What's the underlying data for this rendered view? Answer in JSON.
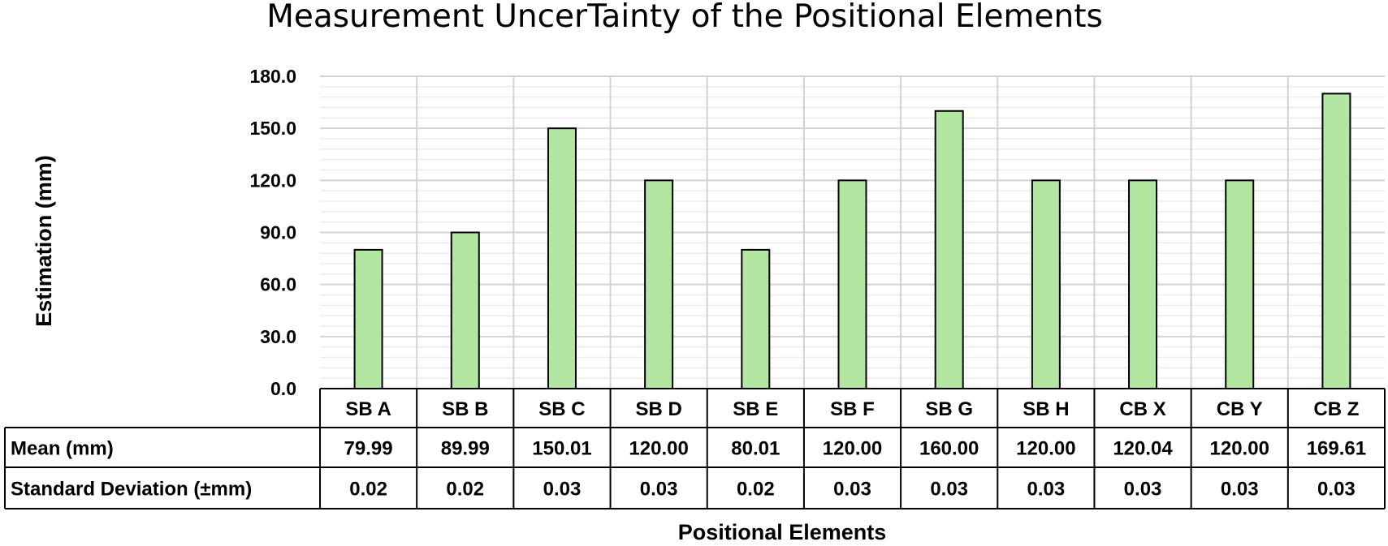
{
  "chart_data": {
    "type": "bar",
    "title": "Measurement UncerTainty of the Positional Elements",
    "xlabel": "Positional Elements",
    "ylabel": "Estimation (mm)",
    "ylim": [
      0,
      180
    ],
    "yticks": [
      "0.0",
      "30.0",
      "60.0",
      "90.0",
      "120.0",
      "150.0",
      "180.0"
    ],
    "grid": true,
    "bar_color": "#b3e6a1",
    "categories": [
      "SB A",
      "SB B",
      "SB C",
      "SB D",
      "SB E",
      "SB F",
      "SB G",
      "SB H",
      "CB X",
      "CB Y",
      "CB Z"
    ],
    "values": [
      80,
      90,
      150,
      120,
      80,
      120,
      160,
      120,
      120,
      120,
      170
    ],
    "table": {
      "rows": [
        {
          "label": "Mean (mm)",
          "values": [
            "79.99",
            "89.99",
            "150.01",
            "120.00",
            "80.01",
            "120.00",
            "160.00",
            "120.00",
            "120.04",
            "120.00",
            "169.61"
          ]
        },
        {
          "label": "Standard Deviation (±mm)",
          "values": [
            "0.02",
            "0.02",
            "0.03",
            "0.03",
            "0.02",
            "0.03",
            "0.03",
            "0.03",
            "0.03",
            "0.03",
            "0.03"
          ]
        }
      ]
    }
  }
}
